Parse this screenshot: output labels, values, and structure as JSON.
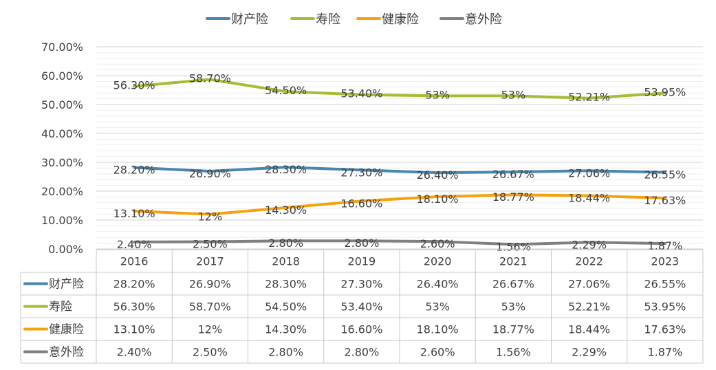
{
  "chart_data": {
    "type": "line",
    "categories": [
      "2016",
      "2017",
      "2018",
      "2019",
      "2020",
      "2021",
      "2022",
      "2023"
    ],
    "ylim": [
      0,
      70
    ],
    "yticks": [
      "0.00%",
      "10.00%",
      "20.00%",
      "30.00%",
      "40.00%",
      "50.00%",
      "60.00%",
      "70.00%"
    ],
    "grid": true,
    "legend_position": "top",
    "data_table": true,
    "series": [
      {
        "name": "财产险",
        "color": "#4A86AE",
        "values": [
          28.2,
          26.9,
          28.3,
          27.3,
          26.4,
          26.67,
          27.06,
          26.55
        ],
        "labels": [
          "28.20%",
          "26.90%",
          "28.30%",
          "27.30%",
          "26.40%",
          "26.67%",
          "27.06%",
          "26.55%"
        ]
      },
      {
        "name": "寿险",
        "color": "#A3BE34",
        "values": [
          56.3,
          58.7,
          54.5,
          53.4,
          53,
          53,
          52.21,
          53.95
        ],
        "labels": [
          "56.30%",
          "58.70%",
          "54.50%",
          "53.40%",
          "53%",
          "53%",
          "52.21%",
          "53.95%"
        ]
      },
      {
        "name": "健康险",
        "color": "#F5A20F",
        "values": [
          13.1,
          12,
          14.3,
          16.6,
          18.1,
          18.77,
          18.44,
          17.63
        ],
        "labels": [
          "13.10%",
          "12%",
          "14.30%",
          "16.60%",
          "18.10%",
          "18.77%",
          "18.44%",
          "17.63%"
        ]
      },
      {
        "name": "意外险",
        "color": "#808080",
        "values": [
          2.4,
          2.5,
          2.8,
          2.8,
          2.6,
          1.56,
          2.29,
          1.87
        ],
        "labels": [
          "2.40%",
          "2.50%",
          "2.80%",
          "2.80%",
          "2.60%",
          "1.56%",
          "2.29%",
          "1.87%"
        ]
      }
    ]
  }
}
